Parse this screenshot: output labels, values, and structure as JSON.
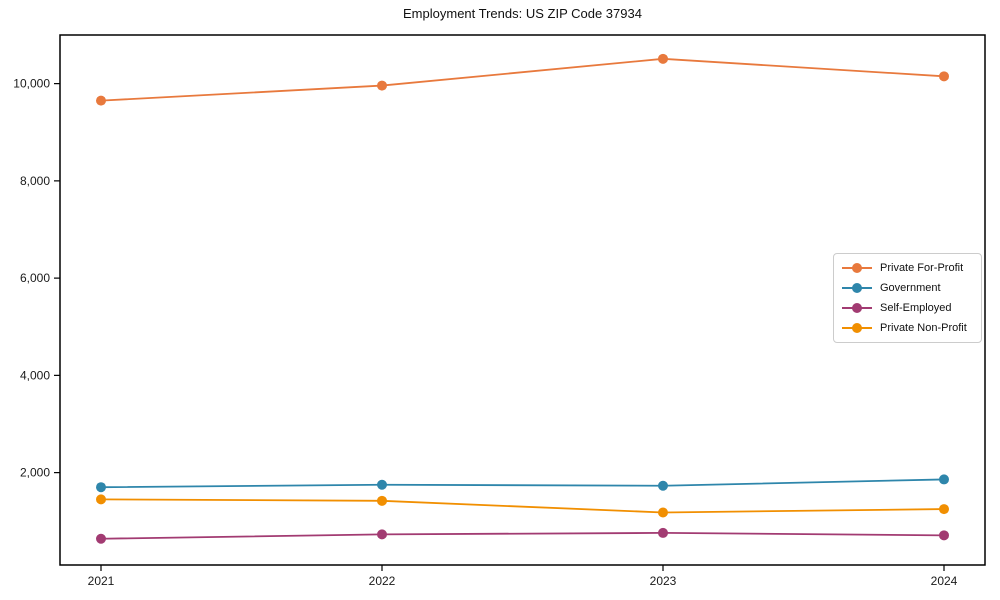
{
  "chart_data": {
    "type": "line",
    "title": "Employment Trends: US ZIP Code 37934",
    "x": [
      2021,
      2022,
      2023,
      2024
    ],
    "x_tick_labels": [
      "2021",
      "2022",
      "2023",
      "2024"
    ],
    "series": [
      {
        "name": "Private For-Profit",
        "color": "#E8793D",
        "values": [
          9650,
          9960,
          10510,
          10150
        ]
      },
      {
        "name": "Government",
        "color": "#2E86AB",
        "values": [
          1700,
          1750,
          1730,
          1860
        ]
      },
      {
        "name": "Self-Employed",
        "color": "#A23B72",
        "values": [
          640,
          730,
          760,
          710
        ]
      },
      {
        "name": "Private Non-Profit",
        "color": "#F18F01",
        "values": [
          1450,
          1420,
          1180,
          1250
        ]
      }
    ],
    "yticks": [
      2000,
      4000,
      6000,
      8000,
      10000
    ],
    "ytick_labels": [
      "2,000",
      "4,000",
      "6,000",
      "8,000",
      "10,000"
    ],
    "ylim": [
      100,
      11000
    ],
    "xlabel": "",
    "ylabel": "",
    "grid": false,
    "legend_position": "center-right",
    "marker": "circle"
  },
  "colors": {
    "background": "#ffffff",
    "axis": "#000000",
    "text": "#1a1a1a",
    "legend_border": "#cccccc"
  }
}
